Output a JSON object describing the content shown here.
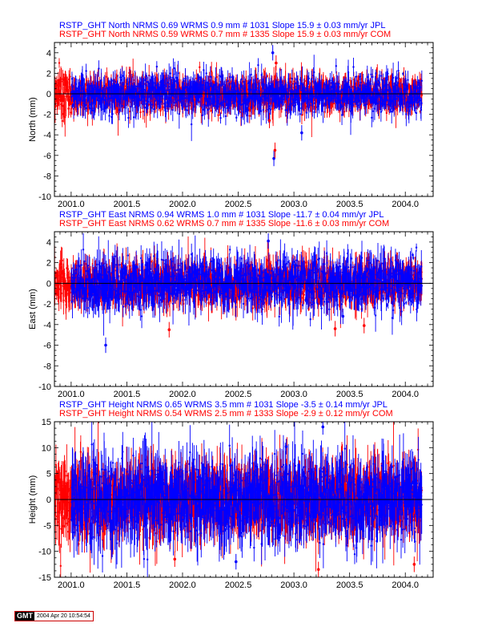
{
  "chart_data": [
    {
      "type": "scatter",
      "title_lines": [
        {
          "text": "RSTP_GHT North NRMS 0.69 WRMS  0.9 mm # 1031 Slope   15.9 ±  0.03 mm/yr JPL",
          "color": "#0000ff"
        },
        {
          "text": "RSTP_GHT North NRMS 0.59 WRMS  0.7 mm # 1335 Slope   15.9 ±  0.03 mm/yr COM",
          "color": "#ff0000"
        }
      ],
      "ylabel": "North (mm)",
      "xlim": [
        2000.85,
        2004.25
      ],
      "ylim": [
        -10,
        5
      ],
      "x_ticks": [
        2001.0,
        2001.5,
        2002.0,
        2002.5,
        2003.0,
        2003.5,
        2004.0
      ],
      "x_tick_labels": [
        "2001.0",
        "2001.5",
        "2002.0",
        "2002.5",
        "2003.0",
        "2003.5",
        "2004.0"
      ],
      "y_ticks": [
        4,
        2,
        0,
        -2,
        -4,
        -6,
        -8,
        -10
      ],
      "y_tick_labels": [
        "4",
        "2",
        "0",
        "-2",
        "-4",
        "-6",
        "-8",
        "-10"
      ],
      "series": [
        {
          "name": "COM",
          "color": "#ff0000",
          "x_range": [
            2000.85,
            2004.15
          ],
          "count": 1335,
          "sigma": 0.7,
          "err": 0.8,
          "err_jitter": 0.6
        },
        {
          "name": "JPL",
          "color": "#0000ff",
          "x_range": [
            2001.0,
            2004.15
          ],
          "count": 1031,
          "sigma": 0.9,
          "err": 0.8,
          "err_jitter": 0.6
        }
      ],
      "outliers": [
        {
          "x": 2002.82,
          "y": -6.3
        },
        {
          "x": 2002.83,
          "y": -5.5
        },
        {
          "x": 2002.81,
          "y": 4.0
        },
        {
          "x": 2002.84,
          "y": 3.0
        },
        {
          "x": 2003.07,
          "y": -3.8
        },
        {
          "x": 2002.78,
          "y": -2.6
        }
      ],
      "grid": false
    },
    {
      "type": "scatter",
      "title_lines": [
        {
          "text": "RSTP_GHT East NRMS 0.94 WRMS  1.0 mm # 1031 Slope  -11.7 ±  0.04 mm/yr JPL",
          "color": "#0000ff"
        },
        {
          "text": "RSTP_GHT East NRMS 0.62 WRMS  0.7 mm # 1335 Slope  -11.6 ±  0.03 mm/yr COM",
          "color": "#ff0000"
        }
      ],
      "ylabel": "East (mm)",
      "xlim": [
        2000.85,
        2004.25
      ],
      "ylim": [
        -10,
        5
      ],
      "x_ticks": [
        2001.0,
        2001.5,
        2002.0,
        2002.5,
        2003.0,
        2003.5,
        2004.0
      ],
      "x_tick_labels": [
        "2001.0",
        "2001.5",
        "2002.0",
        "2002.5",
        "2003.0",
        "2003.5",
        "2004.0"
      ],
      "y_ticks": [
        4,
        2,
        0,
        -2,
        -4,
        -6,
        -8,
        -10
      ],
      "y_tick_labels": [
        "4",
        "2",
        "0",
        "-2",
        "-4",
        "-6",
        "-8",
        "-10"
      ],
      "series": [
        {
          "name": "COM",
          "color": "#ff0000",
          "x_range": [
            2000.85,
            2004.15
          ],
          "count": 1335,
          "sigma": 0.8,
          "err": 1.0,
          "err_jitter": 0.8
        },
        {
          "name": "JPL",
          "color": "#0000ff",
          "x_range": [
            2001.0,
            2004.15
          ],
          "count": 1031,
          "sigma": 1.1,
          "err": 1.1,
          "err_jitter": 0.9
        }
      ],
      "outliers": [
        {
          "x": 2001.31,
          "y": -6.0
        },
        {
          "x": 2001.88,
          "y": -4.5
        },
        {
          "x": 2002.77,
          "y": 4.1
        },
        {
          "x": 2003.37,
          "y": -4.4
        },
        {
          "x": 2003.44,
          "y": -3.2
        },
        {
          "x": 2003.63,
          "y": -4.1
        }
      ],
      "grid": false
    },
    {
      "type": "scatter",
      "title_lines": [
        {
          "text": "RSTP_GHT Height NRMS 0.65 WRMS  3.5 mm # 1031 Slope   -3.5 ±  0.14 mm/yr JPL",
          "color": "#0000ff"
        },
        {
          "text": "RSTP_GHT Height NRMS 0.54 WRMS  2.5 mm # 1333 Slope   -2.9 ±  0.12 mm/yr COM",
          "color": "#ff0000"
        }
      ],
      "ylabel": "Height (mm)",
      "xlim": [
        2000.85,
        2004.25
      ],
      "ylim": [
        -15,
        15
      ],
      "x_ticks": [
        2001.0,
        2001.5,
        2002.0,
        2002.5,
        2003.0,
        2003.5,
        2004.0
      ],
      "x_tick_labels": [
        "2001.0",
        "2001.5",
        "2002.0",
        "2002.5",
        "2003.0",
        "2003.5",
        "2004.0"
      ],
      "y_ticks": [
        15,
        10,
        5,
        0,
        -5,
        -10,
        -15
      ],
      "y_tick_labels": [
        "15",
        "10",
        "5",
        "0",
        "-5",
        "-10",
        "-15"
      ],
      "series": [
        {
          "name": "COM",
          "color": "#ff0000",
          "x_range": [
            2000.85,
            2004.15
          ],
          "count": 1333,
          "sigma": 2.8,
          "err": 3.5,
          "err_jitter": 2.0
        },
        {
          "name": "JPL",
          "color": "#0000ff",
          "x_range": [
            2001.0,
            2004.15
          ],
          "count": 1031,
          "sigma": 3.6,
          "err": 3.8,
          "err_jitter": 2.2
        }
      ],
      "outliers": [
        {
          "x": 2002.48,
          "y": -12.0
        },
        {
          "x": 2003.22,
          "y": -13.5
        },
        {
          "x": 2003.26,
          "y": 14.0
        },
        {
          "x": 2004.08,
          "y": -12.5
        },
        {
          "x": 2002.93,
          "y": 10.2
        },
        {
          "x": 2001.93,
          "y": -11.5
        }
      ],
      "grid": false
    }
  ],
  "footer": {
    "logo": "GMT",
    "timestamp": "2004 Apr 20 10:54:54"
  }
}
